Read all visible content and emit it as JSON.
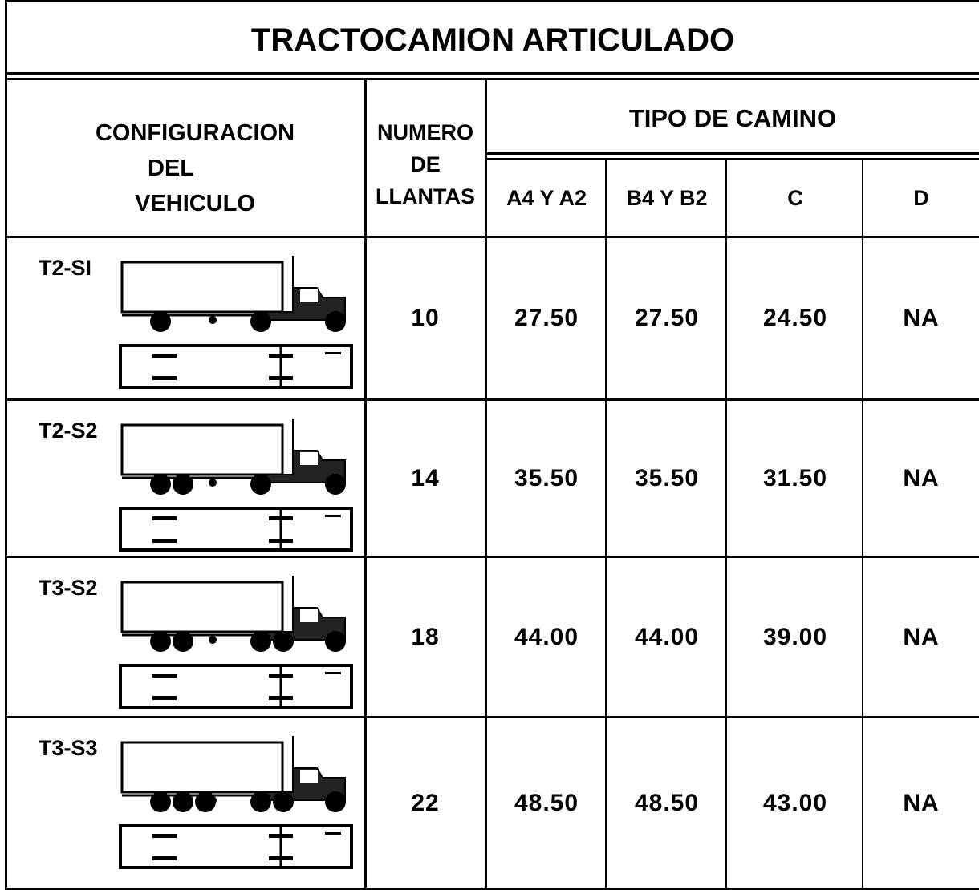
{
  "title": "TRACTOCAMION ARTICULADO",
  "header": {
    "config": [
      "CONFIGURACION",
      "DEL",
      "VEHICULO"
    ],
    "tires": [
      "NUMERO",
      "DE",
      "LLANTAS"
    ],
    "road_type": "TIPO DE CAMINO",
    "road_columns": [
      "A4 Y A2",
      "B4 Y B2",
      "C",
      "D"
    ]
  },
  "rows": [
    [
      "T2-SI",
      "10",
      "27.50",
      "27.50",
      "24.50",
      "NA"
    ],
    [
      "T2-S2",
      "14",
      "35.50",
      "35.50",
      "31.50",
      "NA"
    ],
    [
      "T3-S2",
      "18",
      "44.00",
      "44.00",
      "39.00",
      "NA"
    ],
    [
      "T3-S3",
      "22",
      "48.50",
      "48.50",
      "43.00",
      "NA"
    ]
  ]
}
